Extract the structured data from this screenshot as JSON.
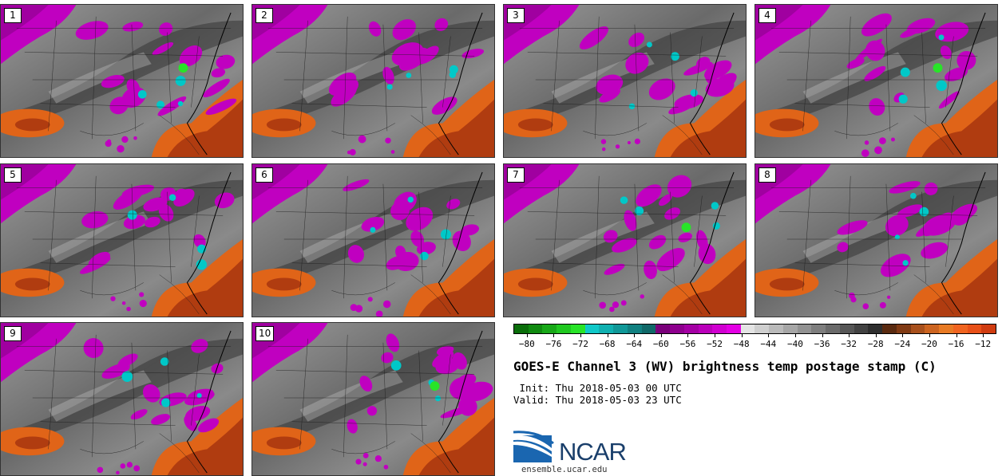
{
  "panels": [
    {
      "label": "1"
    },
    {
      "label": "2"
    },
    {
      "label": "3"
    },
    {
      "label": "4"
    },
    {
      "label": "5"
    },
    {
      "label": "6"
    },
    {
      "label": "7"
    },
    {
      "label": "8"
    },
    {
      "label": "9"
    },
    {
      "label": "10"
    }
  ],
  "colorbar": {
    "colors": [
      "#0a6e0a",
      "#108a10",
      "#18a818",
      "#20c820",
      "#28e428",
      "#10c8c8",
      "#10b0b0",
      "#109898",
      "#108080",
      "#106868",
      "#7a007a",
      "#8e008e",
      "#a400a4",
      "#ba00ba",
      "#d000d0",
      "#e400e4",
      "#e4e4e4",
      "#cfcfcf",
      "#bababa",
      "#a6a6a6",
      "#929292",
      "#7e7e7e",
      "#6a6a6a",
      "#565656",
      "#424242",
      "#2e2e2e",
      "#5a2a10",
      "#803a14",
      "#a8501c",
      "#cc6420",
      "#e87a24",
      "#f06420",
      "#e85018",
      "#d03c10"
    ],
    "tick_labels": [
      "−80",
      "−76",
      "−72",
      "−68",
      "−64",
      "−60",
      "−56",
      "−52",
      "−48",
      "−44",
      "−40",
      "−36",
      "−32",
      "−28",
      "−24",
      "−20",
      "−16",
      "−12"
    ],
    "range": [
      -82,
      -10
    ]
  },
  "title": "GOES-E Channel 3 (WV) brightness temp postage stamp (C)",
  "init": " Init: Thu 2018-05-03 00 UTC",
  "valid": "Valid: Thu 2018-05-03 23 UTC",
  "logo": {
    "text": "NCAR",
    "url": "ensemble.ucar.edu",
    "colors": {
      "blue": "#1a66b0",
      "navy": "#1a3f6b"
    }
  },
  "map_colors": {
    "moist": "#c000c0",
    "moist_core": "#00c8c8",
    "cold_core": "#28e428",
    "dry": "#e06418",
    "dry_core": "#b03c10",
    "field": "#7a7a7a"
  }
}
